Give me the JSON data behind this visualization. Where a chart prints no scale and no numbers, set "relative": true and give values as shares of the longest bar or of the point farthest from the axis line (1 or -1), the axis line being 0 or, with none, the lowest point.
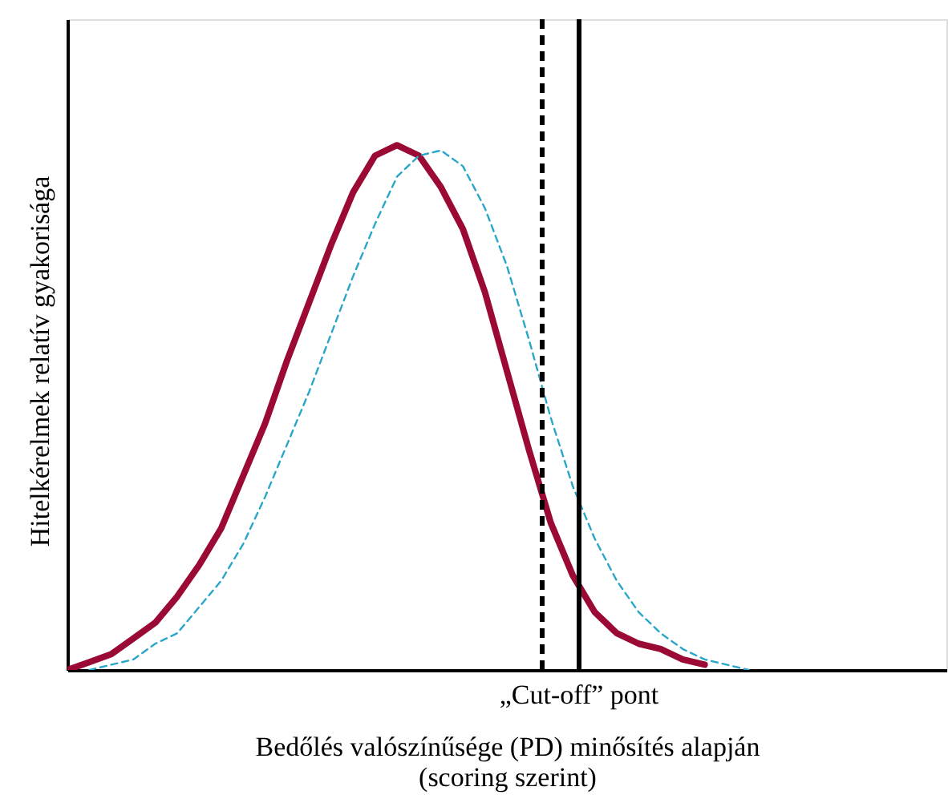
{
  "chart_data": {
    "type": "line",
    "relative": true,
    "xlabel": "Bedőlés valószínűsége (PD) minősítés alapján\n(scoring szerint)",
    "ylabel": "Hitelkérelmek relatív gyakorisága",
    "categories": [
      null,
      null,
      null,
      null,
      null,
      null,
      null,
      null,
      null,
      null,
      null,
      null,
      null,
      null,
      null,
      null,
      null,
      null,
      null,
      null,
      null,
      null,
      null,
      null,
      null,
      null,
      null,
      null,
      null,
      null,
      null,
      null,
      null,
      null,
      null,
      null,
      null,
      null,
      null,
      null,
      null
    ],
    "series": [
      {
        "color": "#9b0a35",
        "line_style": "solid",
        "values": [
          0,
          0.015,
          0.03,
          0.06,
          0.09,
          0.14,
          0.2,
          0.27,
          0.37,
          0.47,
          0.59,
          0.7,
          0.81,
          0.91,
          0.98,
          1.0,
          0.98,
          0.92,
          0.84,
          0.72,
          0.57,
          0.42,
          0.28,
          0.18,
          0.11,
          0.07,
          0.05,
          0.04,
          0.02,
          0.01,
          null,
          null,
          null,
          null,
          null,
          null,
          null,
          null,
          null,
          null,
          null
        ]
      },
      {
        "color": "#2aa6c8",
        "line_style": "dashed",
        "values": [
          null,
          0,
          0.01,
          0.02,
          0.05,
          0.07,
          0.12,
          0.17,
          0.24,
          0.33,
          0.43,
          0.53,
          0.64,
          0.75,
          0.85,
          0.94,
          0.98,
          0.99,
          0.96,
          0.88,
          0.77,
          0.63,
          0.48,
          0.35,
          0.25,
          0.17,
          0.11,
          0.07,
          0.04,
          0.02,
          0.01,
          0,
          null,
          null,
          null,
          null,
          null,
          null,
          null,
          null,
          null
        ]
      }
    ],
    "annotations": [
      "„Cut-off” pont"
    ],
    "grid": false,
    "tick_labels": false,
    "marker": "none"
  }
}
